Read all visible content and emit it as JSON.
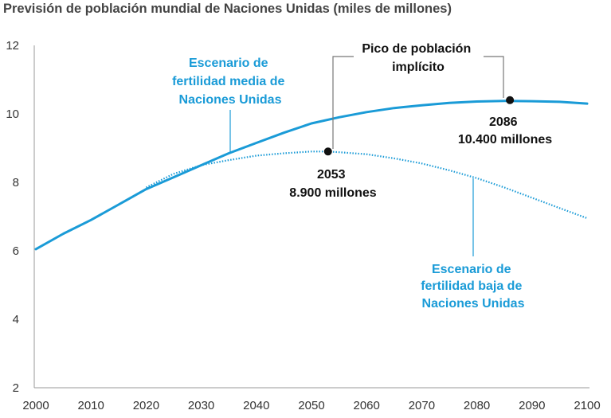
{
  "chart_data": {
    "type": "line",
    "title": "Previsión de población mundial de Naciones Unidas (miles de millones)",
    "xlabel": "",
    "ylabel": "",
    "xlim": [
      2000,
      2100
    ],
    "ylim": [
      2,
      12
    ],
    "x_ticks": [
      "2000",
      "2010",
      "2020",
      "2030",
      "2040",
      "2050",
      "2060",
      "2070",
      "2080",
      "2090",
      "2100"
    ],
    "y_ticks": [
      "2",
      "4",
      "6",
      "8",
      "10",
      "12"
    ],
    "grid": false,
    "series": [
      {
        "name": "Escenario de fertilidad media de Naciones Unidas",
        "style": "solid",
        "color": "#1a9bd7",
        "x": [
          2000,
          2005,
          2010,
          2015,
          2020,
          2025,
          2030,
          2035,
          2040,
          2045,
          2050,
          2055,
          2060,
          2065,
          2070,
          2075,
          2080,
          2085,
          2090,
          2095,
          2100
        ],
        "values": [
          6.05,
          6.5,
          6.9,
          7.35,
          7.8,
          8.15,
          8.5,
          8.85,
          9.15,
          9.45,
          9.72,
          9.9,
          10.05,
          10.17,
          10.25,
          10.32,
          10.36,
          10.38,
          10.37,
          10.35,
          10.3
        ]
      },
      {
        "name": "Escenario de fertilidad baja de Naciones Unidas",
        "style": "dotted",
        "color": "#1a9bd7",
        "x": [
          2020,
          2025,
          2030,
          2035,
          2040,
          2045,
          2050,
          2053,
          2055,
          2060,
          2065,
          2070,
          2075,
          2080,
          2085,
          2090,
          2095,
          2100
        ],
        "values": [
          7.85,
          8.25,
          8.5,
          8.65,
          8.78,
          8.85,
          8.9,
          8.9,
          8.88,
          8.82,
          8.7,
          8.55,
          8.35,
          8.12,
          7.85,
          7.55,
          7.25,
          6.95
        ]
      }
    ],
    "labels": {
      "medium": [
        "Escenario de",
        "fertilidad media de",
        "Naciones Unidas"
      ],
      "low": [
        "Escenario de",
        "fertilidad baja de",
        "Naciones Unidas"
      ],
      "peak": [
        "Pico de población",
        "implícito"
      ]
    },
    "annotations": [
      {
        "x": 2053,
        "y": 8.9,
        "line1": "2053",
        "line2": "8.900 millones"
      },
      {
        "x": 2086,
        "y": 10.4,
        "line1": "2086",
        "line2": "10.400 millones"
      }
    ],
    "colors": {
      "series": "#1a9bd7",
      "text": "#111111",
      "axis": "#999999"
    }
  }
}
